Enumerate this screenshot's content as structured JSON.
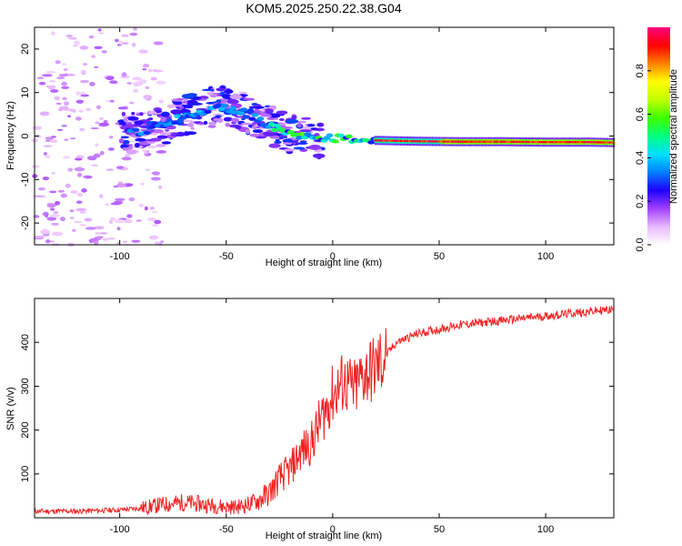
{
  "title": "KOM5.2025.250.22.38.G04",
  "chart_data": [
    {
      "type": "heatmap",
      "name": "spectrogram",
      "xlabel": "Height of straight line (km)",
      "ylabel": "Frequency (Hz)",
      "xlim": [
        -140,
        132
      ],
      "ylim": [
        -25,
        25
      ],
      "xticks": [
        -100,
        -50,
        0,
        50,
        100
      ],
      "yticks": [
        -20,
        -10,
        0,
        10,
        20
      ],
      "colorbar": {
        "label": "Normalized spectral amplitude",
        "range": [
          0,
          1
        ],
        "ticks": [
          0.0,
          0.2,
          0.4,
          0.6,
          0.8
        ],
        "colors": [
          "#ffffff",
          "#e8b8ff",
          "#a040ff",
          "#2000ff",
          "#0080ff",
          "#00e0ff",
          "#00ff80",
          "#40ff00",
          "#c0ff00",
          "#ffff00",
          "#ff8000",
          "#ff0000",
          "#ff0080"
        ]
      },
      "ridge": {
        "x": [
          -100,
          -90,
          -80,
          -70,
          -60,
          -55,
          -50,
          -45,
          -40,
          -35,
          -30,
          -25,
          -20,
          -10,
          0,
          10,
          20,
          40,
          60,
          80,
          100,
          120,
          132
        ],
        "y": [
          0.5,
          1,
          2.5,
          4.5,
          6,
          7,
          6.5,
          6,
          5,
          4,
          2.5,
          1.5,
          0.5,
          -0.3,
          -0.5,
          -0.8,
          -1,
          -1.2,
          -1.3,
          -1.3,
          -1.4,
          -1.4,
          -1.5
        ]
      }
    },
    {
      "type": "line",
      "name": "snr",
      "xlabel": "Height of straight line (km)",
      "ylabel": "SNR (v/v)",
      "xlim": [
        -140,
        132
      ],
      "ylim": [
        0,
        500
      ],
      "xticks": [
        -100,
        -50,
        0,
        50,
        100
      ],
      "yticks": [
        100,
        200,
        300,
        400
      ],
      "color": "#ee2222",
      "series": [
        {
          "name": "SNR",
          "x": [
            -140,
            -120,
            -100,
            -90,
            -80,
            -70,
            -60,
            -50,
            -45,
            -40,
            -35,
            -30,
            -25,
            -20,
            -15,
            -10,
            -5,
            0,
            5,
            10,
            15,
            20,
            25,
            30,
            40,
            50,
            60,
            70,
            80,
            90,
            100,
            110,
            120,
            132
          ],
          "y": [
            15,
            15,
            18,
            22,
            30,
            35,
            30,
            25,
            25,
            30,
            40,
            55,
            90,
            110,
            150,
            170,
            230,
            280,
            310,
            290,
            330,
            340,
            370,
            400,
            420,
            430,
            440,
            445,
            450,
            455,
            460,
            465,
            470,
            475
          ]
        }
      ]
    }
  ]
}
